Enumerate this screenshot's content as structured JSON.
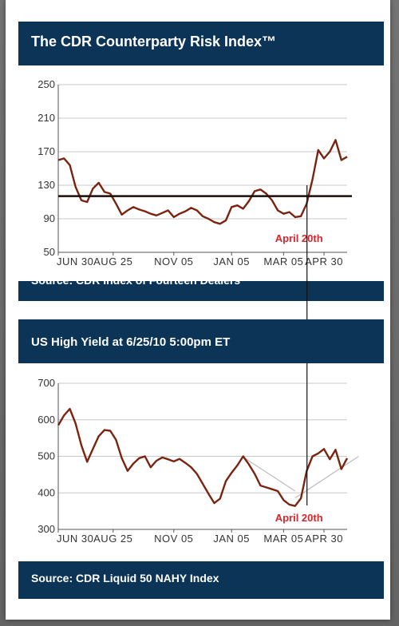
{
  "colors": {
    "panel_bg": "#0b3457",
    "series": "#7a2410",
    "ref_line": "#1a0d08",
    "annotation": "#d6262c",
    "grid": "#c8c8c8",
    "trend": "#bdbdbd"
  },
  "panels": [
    {
      "title": "The CDR Counterparty Risk Index™",
      "source": "Source: CDR Index of Fourteen Dealers"
    },
    {
      "title": "US High Yield at 6/25/10 5:00pm ET",
      "source": "Source: CDR Liquid 50 NAHY Index"
    }
  ],
  "chart_data": [
    {
      "type": "line",
      "ylim": [
        50,
        250
      ],
      "yticks": [
        50,
        90,
        130,
        170,
        210,
        250
      ],
      "xticks": [
        "JUN 30",
        "AUG 25",
        "NOV 05",
        "JAN 05",
        "MAR 05",
        "APR 30"
      ],
      "xdomain": [
        0,
        100
      ],
      "xtick_positions": [
        0,
        19,
        40,
        60,
        78,
        92
      ],
      "grid": true,
      "reference_line": 117,
      "annotation": {
        "text": "April 20th",
        "x": 85
      },
      "series": [
        {
          "x": [
            0,
            2,
            4,
            6,
            8,
            10,
            12,
            14,
            16,
            18,
            20,
            22,
            24,
            26,
            28,
            30,
            32,
            34,
            36,
            38,
            40,
            42,
            44,
            46,
            48,
            50,
            52,
            54,
            56,
            58,
            60,
            62,
            64,
            66,
            68,
            70,
            72,
            74,
            76,
            78,
            80,
            82,
            84,
            86,
            88,
            90,
            92,
            94,
            96,
            98,
            100
          ],
          "values": [
            160,
            162,
            154,
            128,
            112,
            110,
            126,
            133,
            122,
            120,
            108,
            95,
            100,
            104,
            101,
            99,
            96,
            94,
            97,
            100,
            92,
            96,
            99,
            103,
            100,
            93,
            90,
            86,
            84,
            88,
            104,
            106,
            102,
            111,
            123,
            125,
            120,
            112,
            100,
            96,
            98,
            92,
            93,
            108,
            137,
            172,
            162,
            170,
            184,
            160,
            164
          ]
        }
      ]
    },
    {
      "type": "line",
      "ylim": [
        300,
        700
      ],
      "yticks": [
        300,
        400,
        500,
        600,
        700
      ],
      "xticks": [
        "JUN 30",
        "AUG 25",
        "NOV 05",
        "JAN 05",
        "MAR 05",
        "APR 30"
      ],
      "xdomain": [
        0,
        100
      ],
      "xtick_positions": [
        0,
        19,
        40,
        60,
        78,
        92
      ],
      "grid": true,
      "annotation": {
        "text": "April 20th",
        "x": 85
      },
      "series": [
        {
          "x": [
            0,
            2,
            4,
            6,
            8,
            10,
            12,
            14,
            16,
            18,
            20,
            22,
            24,
            26,
            28,
            30,
            32,
            34,
            36,
            38,
            40,
            42,
            44,
            46,
            48,
            50,
            52,
            54,
            56,
            58,
            60,
            62,
            64,
            66,
            68,
            70,
            72,
            74,
            76,
            78,
            80,
            82,
            84,
            86,
            88,
            90,
            92,
            94,
            96,
            98,
            100
          ],
          "values": [
            585,
            612,
            630,
            590,
            530,
            485,
            520,
            555,
            572,
            570,
            545,
            495,
            460,
            480,
            495,
            500,
            470,
            488,
            497,
            492,
            486,
            493,
            482,
            470,
            452,
            425,
            398,
            372,
            384,
            432,
            455,
            475,
            500,
            478,
            452,
            420,
            415,
            410,
            405,
            380,
            368,
            364,
            385,
            460,
            500,
            508,
            520,
            492,
            518,
            465,
            495
          ]
        }
      ],
      "trend_lines": [
        {
          "x": [
            64,
            82
          ],
          "values": [
            498,
            405
          ]
        },
        {
          "x": [
            82,
            104
          ],
          "values": [
            386,
            500
          ]
        }
      ]
    }
  ]
}
